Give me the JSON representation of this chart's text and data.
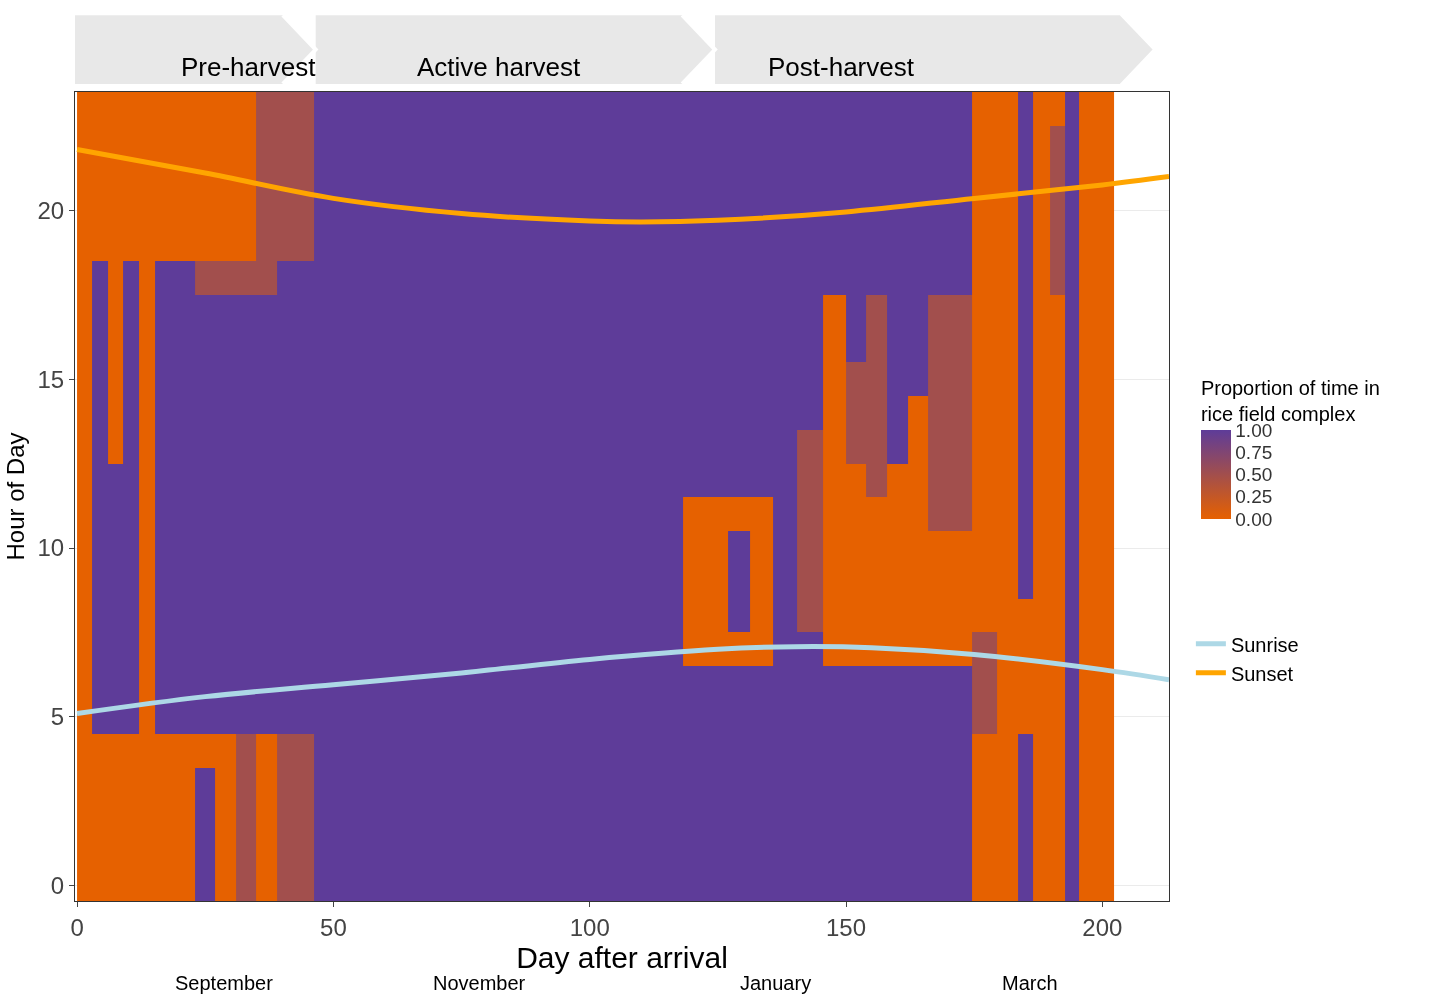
{
  "chart_data": {
    "type": "heatmap",
    "xlabel": "Day after arrival",
    "ylabel": "Hour of Day",
    "clabel": "Proportion of time in\nrice field complex",
    "x": [
      1.5,
      4.5,
      7.5,
      10.5,
      13.5,
      17,
      21,
      25,
      29,
      33,
      37,
      41,
      51.5,
      70,
      90,
      111.5,
      125,
      129,
      133.5,
      138,
      143,
      148,
      152,
      156,
      160,
      164,
      168,
      172,
      177,
      182,
      185,
      188,
      191.5,
      194,
      197,
      200.5
    ],
    "y": [
      23,
      22,
      21,
      20,
      19,
      18,
      17,
      16,
      15,
      14,
      13,
      12,
      11,
      10,
      9,
      8,
      7,
      6,
      5,
      4,
      3,
      2,
      1,
      0
    ],
    "cells": [
      [
        0,
        0,
        0,
        0,
        0,
        0,
        0,
        0,
        0,
        0,
        0.5,
        0.5,
        1,
        1,
        1,
        1,
        1,
        1,
        1,
        1,
        1,
        1,
        1,
        1,
        1,
        1,
        1,
        1,
        0,
        0,
        1,
        0,
        0,
        1,
        0,
        0
      ],
      [
        0,
        0,
        0,
        0,
        0,
        0,
        0,
        0,
        0,
        0,
        0.5,
        0.5,
        1,
        1,
        1,
        1,
        1,
        1,
        1,
        1,
        1,
        1,
        1,
        1,
        1,
        1,
        1,
        1,
        0,
        0,
        1,
        0,
        0.5,
        1,
        0,
        0
      ],
      [
        0,
        0,
        0,
        0,
        0,
        0,
        0,
        0,
        0,
        0,
        0.5,
        0.5,
        1,
        1,
        1,
        1,
        1,
        1,
        1,
        1,
        1,
        1,
        1,
        1,
        1,
        1,
        1,
        1,
        0,
        0,
        1,
        0,
        0.5,
        1,
        0,
        0
      ],
      [
        0,
        0,
        0,
        0,
        0,
        0,
        0,
        0,
        0,
        0,
        0.5,
        0.5,
        1,
        1,
        1,
        1,
        1,
        1,
        1,
        1,
        1,
        1,
        1,
        1,
        1,
        1,
        1,
        1,
        0,
        0,
        1,
        0,
        0.5,
        1,
        0,
        0
      ],
      [
        0,
        0,
        0,
        0,
        0,
        0,
        0,
        0,
        0,
        0,
        0.5,
        0.5,
        1,
        1,
        1,
        1,
        1,
        1,
        1,
        1,
        1,
        1,
        1,
        1,
        1,
        1,
        1,
        1,
        0,
        0,
        1,
        0,
        0.5,
        1,
        0,
        0
      ],
      [
        0,
        1,
        0,
        1,
        0,
        1,
        1,
        0.5,
        0.5,
        0.5,
        0.5,
        1,
        1,
        1,
        1,
        1,
        1,
        1,
        1,
        1,
        1,
        1,
        1,
        1,
        1,
        1,
        1,
        1,
        0,
        0,
        1,
        0,
        0.5,
        1,
        0,
        0
      ],
      [
        0,
        1,
        0,
        1,
        0,
        1,
        1,
        1,
        1,
        1,
        1,
        1,
        1,
        1,
        1,
        1,
        1,
        1,
        1,
        1,
        1,
        0,
        1,
        0.5,
        1,
        1,
        0.5,
        0.5,
        0,
        0,
        1,
        0,
        0,
        1,
        0,
        0
      ],
      [
        0,
        1,
        0,
        1,
        0,
        1,
        1,
        1,
        1,
        1,
        1,
        1,
        1,
        1,
        1,
        1,
        1,
        1,
        1,
        1,
        1,
        0,
        1,
        0.5,
        1,
        1,
        0.5,
        0.5,
        0,
        0,
        1,
        0,
        0,
        1,
        0,
        0
      ],
      [
        0,
        1,
        0,
        1,
        0,
        1,
        1,
        1,
        1,
        1,
        1,
        1,
        1,
        1,
        1,
        1,
        1,
        1,
        1,
        1,
        1,
        0,
        0.5,
        0.5,
        1,
        1,
        0.5,
        0.5,
        0,
        0,
        1,
        0,
        0,
        1,
        0,
        0
      ],
      [
        0,
        1,
        0,
        1,
        0,
        1,
        1,
        1,
        1,
        1,
        1,
        1,
        1,
        1,
        1,
        1,
        1,
        1,
        1,
        1,
        1,
        0,
        0.5,
        0.5,
        1,
        0,
        0.5,
        0.5,
        0,
        0,
        1,
        0,
        0,
        1,
        0,
        0
      ],
      [
        0,
        1,
        0,
        1,
        0,
        1,
        1,
        1,
        1,
        1,
        1,
        1,
        1,
        1,
        1,
        1,
        1,
        1,
        1,
        1,
        0.5,
        0,
        0.5,
        0.5,
        1,
        0,
        0.5,
        0.5,
        0,
        0,
        1,
        0,
        0,
        1,
        0,
        0
      ],
      [
        0,
        1,
        1,
        1,
        0,
        1,
        1,
        1,
        1,
        1,
        1,
        1,
        1,
        1,
        1,
        1,
        1,
        1,
        1,
        1,
        0.5,
        0,
        0,
        0.5,
        0,
        0,
        0.5,
        0.5,
        0,
        0,
        1,
        0,
        0,
        1,
        0,
        0
      ],
      [
        0,
        1,
        1,
        1,
        0,
        1,
        1,
        1,
        1,
        1,
        1,
        1,
        1,
        1,
        1,
        1,
        0,
        0,
        0,
        1,
        0.5,
        0,
        0,
        0,
        0,
        0,
        0.5,
        0.5,
        0,
        0,
        1,
        0,
        0,
        1,
        0,
        0
      ],
      [
        0,
        1,
        1,
        1,
        0,
        1,
        1,
        1,
        1,
        1,
        1,
        1,
        1,
        1,
        1,
        1,
        0,
        1,
        0,
        1,
        0.5,
        0,
        0,
        0,
        0,
        0,
        0,
        0,
        0,
        0,
        1,
        0,
        0,
        1,
        0,
        0
      ],
      [
        0,
        1,
        1,
        1,
        0,
        1,
        1,
        1,
        1,
        1,
        1,
        1,
        1,
        1,
        1,
        1,
        0,
        1,
        0,
        1,
        0.5,
        0,
        0,
        0,
        0,
        0,
        0,
        0,
        0,
        0,
        1,
        0,
        0,
        1,
        0,
        0
      ],
      [
        0,
        1,
        1,
        1,
        0,
        1,
        1,
        1,
        1,
        1,
        1,
        1,
        1,
        1,
        1,
        1,
        0,
        1,
        0,
        1,
        0.5,
        0,
        0,
        0,
        0,
        0,
        0,
        0,
        0,
        0,
        0,
        0,
        0,
        1,
        0,
        0
      ],
      [
        0,
        1,
        1,
        1,
        0,
        1,
        1,
        1,
        1,
        1,
        1,
        1,
        1,
        1,
        1,
        1,
        0,
        0,
        0,
        1,
        1,
        0,
        0,
        0,
        0,
        0,
        0,
        0,
        0.5,
        0,
        0,
        0,
        0,
        1,
        0,
        0
      ],
      [
        0,
        1,
        1,
        1,
        0,
        1,
        1,
        1,
        1,
        1,
        1,
        1,
        1,
        1,
        1,
        1,
        1,
        1,
        1,
        1,
        1,
        1,
        1,
        1,
        1,
        1,
        1,
        1,
        0.5,
        0,
        0,
        0,
        0,
        1,
        0,
        0
      ],
      [
        0,
        1,
        1,
        1,
        0,
        1,
        1,
        1,
        1,
        1,
        1,
        1,
        1,
        1,
        1,
        1,
        1,
        1,
        1,
        1,
        1,
        1,
        1,
        1,
        1,
        1,
        1,
        1,
        0.5,
        0,
        0,
        0,
        0,
        1,
        0,
        0
      ],
      [
        0,
        0,
        0,
        0,
        0,
        0,
        0,
        0,
        0,
        0.5,
        0,
        0.5,
        1,
        1,
        1,
        1,
        1,
        1,
        1,
        1,
        1,
        1,
        1,
        1,
        1,
        1,
        1,
        1,
        0,
        0,
        1,
        0,
        0,
        1,
        0,
        0
      ],
      [
        0,
        0,
        0,
        0,
        0,
        0,
        0,
        1,
        0,
        0.5,
        0,
        0.5,
        1,
        1,
        1,
        1,
        1,
        1,
        1,
        1,
        1,
        1,
        1,
        1,
        1,
        1,
        1,
        1,
        0,
        0,
        1,
        0,
        0,
        1,
        0,
        0
      ],
      [
        0,
        0,
        0,
        0,
        0,
        0,
        0,
        1,
        0,
        0.5,
        0,
        0.5,
        1,
        1,
        1,
        1,
        1,
        1,
        1,
        1,
        1,
        1,
        1,
        1,
        1,
        1,
        1,
        1,
        0,
        0,
        1,
        0,
        0,
        1,
        0,
        0
      ],
      [
        0,
        0,
        0,
        0,
        0,
        0,
        0,
        1,
        0,
        0.5,
        0,
        0.5,
        1,
        1,
        1,
        1,
        1,
        1,
        1,
        1,
        1,
        1,
        1,
        1,
        1,
        1,
        1,
        1,
        0,
        0,
        1,
        0,
        0,
        1,
        0,
        0
      ],
      [
        0,
        0,
        0,
        0,
        0,
        0,
        0,
        1,
        0,
        0.5,
        0,
        0.5,
        1,
        1,
        1,
        1,
        1,
        1,
        1,
        1,
        1,
        1,
        1,
        1,
        1,
        1,
        1,
        1,
        0,
        0,
        1,
        0,
        0,
        1,
        0,
        0
      ]
    ],
    "colors": [
      "#e66100",
      "#5e3c99"
    ],
    "clim": [
      0,
      1
    ],
    "cticks": [
      {
        "value": 0,
        "label": "0.00"
      },
      {
        "value": 0.25,
        "label": "0.25"
      },
      {
        "value": 0.5,
        "label": "0.50"
      },
      {
        "value": 0.75,
        "label": "0.75"
      },
      {
        "value": 1,
        "label": "1.00"
      }
    ],
    "series": [
      {
        "name": "Sunrise",
        "type": "line",
        "color": "#add8e6",
        "x": [
          0,
          25,
          50,
          75,
          100,
          125,
          140,
          155,
          175,
          200,
          213
        ],
        "values": [
          5.1,
          5.6,
          5.95,
          6.3,
          6.7,
          7.0,
          7.08,
          7.05,
          6.85,
          6.4,
          6.1
        ]
      },
      {
        "name": "Sunset",
        "type": "line",
        "color": "#ffa500",
        "x": [
          0,
          25,
          50,
          75,
          100,
          110,
          125,
          150,
          175,
          200,
          213
        ],
        "values": [
          21.8,
          21.1,
          20.35,
          19.9,
          19.68,
          19.65,
          19.7,
          19.95,
          20.35,
          20.75,
          21.0
        ]
      }
    ],
    "annotations": [
      "Pre-harvest",
      "Active harvest",
      "Post-harvest",
      "September",
      "November",
      "January",
      "March"
    ],
    "xlim": [
      -0.4,
      213
    ],
    "xticks": [
      0,
      50,
      100,
      150,
      200
    ],
    "ylim": [
      -0.45,
      23.5
    ],
    "yticks": [
      0,
      5,
      10,
      15,
      20
    ],
    "grid": true,
    "legend": "right"
  }
}
